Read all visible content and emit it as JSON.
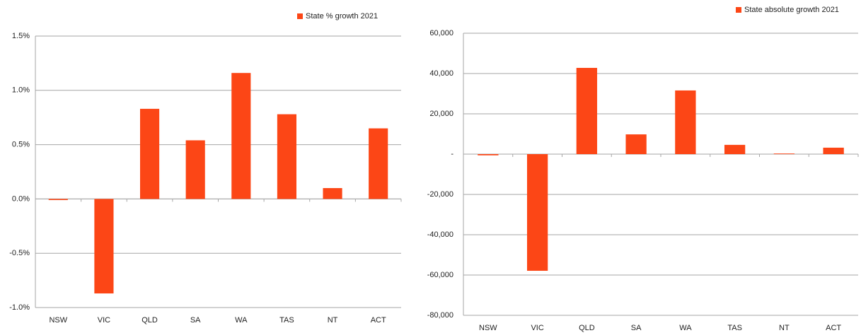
{
  "chart_data": [
    {
      "type": "bar",
      "categories": [
        "NSW",
        "VIC",
        "QLD",
        "SA",
        "WA",
        "TAS",
        "NT",
        "ACT"
      ],
      "series": [
        {
          "name": "State % growth 2021",
          "color": "#fc4616",
          "values": [
            -0.01,
            -0.87,
            0.83,
            0.54,
            1.16,
            0.78,
            0.1,
            0.65
          ]
        }
      ],
      "ylim": [
        -1.0,
        1.5
      ],
      "yticks": [
        {
          "value": -1.0,
          "label": "-1.0%"
        },
        {
          "value": -0.5,
          "label": "-0.5%"
        },
        {
          "value": 0.0,
          "label": "0.0%"
        },
        {
          "value": 0.5,
          "label": "0.5%"
        },
        {
          "value": 1.0,
          "label": "1.0%"
        },
        {
          "value": 1.5,
          "label": "1.5%"
        }
      ],
      "grid": true,
      "legend": "top-right"
    },
    {
      "type": "bar",
      "categories": [
        "NSW",
        "VIC",
        "QLD",
        "SA",
        "WA",
        "TAS",
        "NT",
        "ACT"
      ],
      "series": [
        {
          "name": "State absolute growth 2021",
          "color": "#fc4616",
          "values": [
            -600,
            -57900,
            42800,
            9800,
            31600,
            4600,
            300,
            3200
          ]
        }
      ],
      "ylim": [
        -80000,
        60000
      ],
      "yticks": [
        {
          "value": -80000,
          "label": "-80,000"
        },
        {
          "value": -60000,
          "label": "-60,000"
        },
        {
          "value": -40000,
          "label": "-40,000"
        },
        {
          "value": -20000,
          "label": "-20,000"
        },
        {
          "value": 0,
          "label": "-"
        },
        {
          "value": 20000,
          "label": "20,000"
        },
        {
          "value": 40000,
          "label": "40,000"
        },
        {
          "value": 60000,
          "label": "60,000"
        }
      ],
      "grid": true,
      "legend": "top-right"
    }
  ]
}
